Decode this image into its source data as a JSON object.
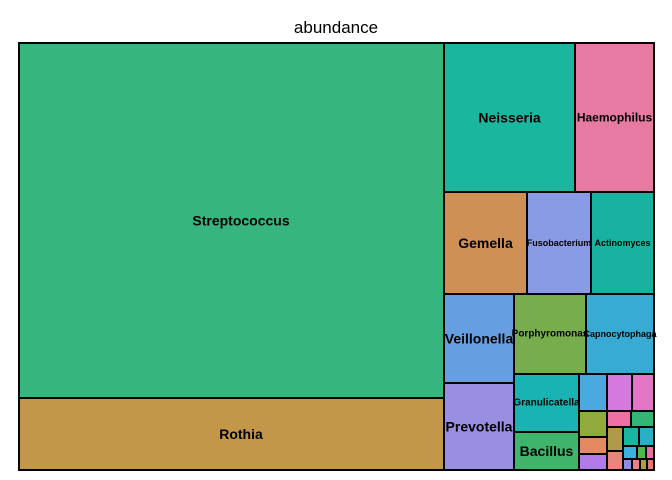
{
  "chart_data": {
    "type": "treemap",
    "title": "abundance",
    "tiles": [
      {
        "label": "Streptococcus",
        "value": 2500,
        "color": "#36B67E"
      },
      {
        "label": "Rothia",
        "value": 420,
        "color": "#C2974A"
      },
      {
        "label": "Neisseria",
        "value": 275,
        "color": "#1AB69E"
      },
      {
        "label": "Haemophilus",
        "value": 220,
        "color": "#E77AA2"
      },
      {
        "label": "Gemella",
        "value": 120,
        "color": "#CE9055"
      },
      {
        "label": "Fusobacterium",
        "value": 90,
        "color": "#8A9BE6"
      },
      {
        "label": "Actinomyces",
        "value": 85,
        "color": "#19B2A0"
      },
      {
        "label": "Veillonella",
        "value": 85,
        "color": "#669FE0"
      },
      {
        "label": "Porphyromonas",
        "value": 80,
        "color": "#78AD4E"
      },
      {
        "label": "Capnocytophaga",
        "value": 75,
        "color": "#37ABD3"
      },
      {
        "label": "Prevotella",
        "value": 95,
        "color": "#9A8EE2"
      },
      {
        "label": "Granulicatella",
        "value": 40,
        "color": "#1AB3B3"
      },
      {
        "label": "Bacillus",
        "value": 30,
        "color": "#3FB56B"
      },
      {
        "label": "",
        "value": 7,
        "color": "#4AAAE0"
      },
      {
        "label": "",
        "value": 6,
        "color": "#D47ADE"
      },
      {
        "label": "",
        "value": 5,
        "color": "#E275C6"
      },
      {
        "label": "",
        "value": 5,
        "color": "#90AA3E"
      },
      {
        "label": "",
        "value": 4,
        "color": "#F070A6"
      },
      {
        "label": "",
        "value": 4,
        "color": "#35B575"
      },
      {
        "label": "",
        "value": 4,
        "color": "#E48A63"
      },
      {
        "label": "",
        "value": 3,
        "color": "#AF9A45"
      },
      {
        "label": "",
        "value": 3,
        "color": "#1AB6A0"
      },
      {
        "label": "",
        "value": 3,
        "color": "#29AFC6"
      },
      {
        "label": "",
        "value": 3,
        "color": "#B17CE8"
      },
      {
        "label": "",
        "value": 3,
        "color": "#E8867C"
      },
      {
        "label": "",
        "value": 2,
        "color": "#3AB1DE"
      },
      {
        "label": "",
        "value": 2,
        "color": "#4FB84D"
      },
      {
        "label": "",
        "value": 2,
        "color": "#E86F9E"
      },
      {
        "label": "",
        "value": 2,
        "color": "#8C8FE9"
      },
      {
        "label": "",
        "value": 2,
        "color": "#F07E85"
      },
      {
        "label": "",
        "value": 1,
        "color": "#A9A33C"
      },
      {
        "label": "",
        "value": 1,
        "color": "#E57670"
      }
    ]
  }
}
